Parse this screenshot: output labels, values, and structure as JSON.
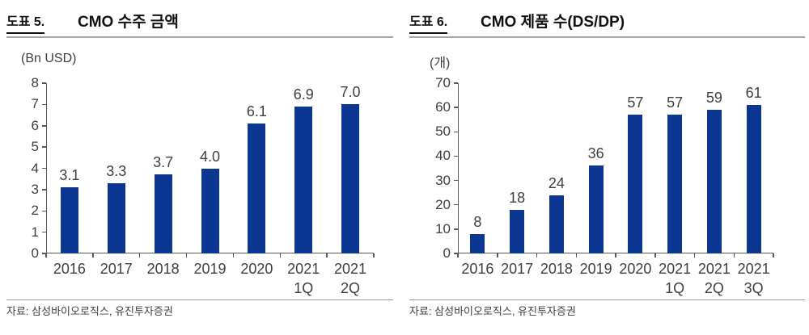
{
  "page": {
    "background": "#ffffff"
  },
  "colors": {
    "bar": "#0b3793",
    "axis": "#595959",
    "tick_text": "#3f3f3f",
    "title_text": "#111111",
    "header_rule": "#a6a6a6",
    "source_rule": "#999999",
    "source_text": "#404040"
  },
  "chart_data": [
    {
      "type": "bar",
      "fig_label": "도표 5.",
      "title": "CMO 수주 금액",
      "unit": "(Bn USD)",
      "source": "자료: 삼성바이오로직스, 유진투자증권",
      "categories": [
        "2016",
        "2017",
        "2018",
        "2019",
        "2020",
        "2021 1Q",
        "2021 2Q"
      ],
      "values": [
        3.1,
        3.3,
        3.7,
        4.0,
        6.1,
        6.9,
        7.0
      ],
      "value_labels": [
        "3.1",
        "3.3",
        "3.7",
        "4.0",
        "6.1",
        "6.9",
        "7.0"
      ],
      "xlabel": "",
      "ylabel": "",
      "ylim": [
        0,
        8
      ],
      "yticks": [
        0,
        1,
        2,
        3,
        4,
        5,
        6,
        7,
        8
      ],
      "grid": false,
      "legend": "none",
      "bar_color": "#0b3793"
    },
    {
      "type": "bar",
      "fig_label": "도표 6.",
      "title": "CMO 제품 수(DS/DP)",
      "unit": "(개)",
      "source": "자료: 삼성바이오로직스, 유진투자증권",
      "categories": [
        "2016",
        "2017",
        "2018",
        "2019",
        "2020",
        "2021 1Q",
        "2021 2Q",
        "2021 3Q"
      ],
      "values": [
        8,
        18,
        24,
        36,
        57,
        57,
        59,
        61
      ],
      "value_labels": [
        "8",
        "18",
        "24",
        "36",
        "57",
        "57",
        "59",
        "61"
      ],
      "xlabel": "",
      "ylabel": "",
      "ylim": [
        0,
        70
      ],
      "yticks": [
        0,
        10,
        20,
        30,
        40,
        50,
        60,
        70
      ],
      "grid": false,
      "legend": "none",
      "bar_color": "#0b3793"
    }
  ]
}
